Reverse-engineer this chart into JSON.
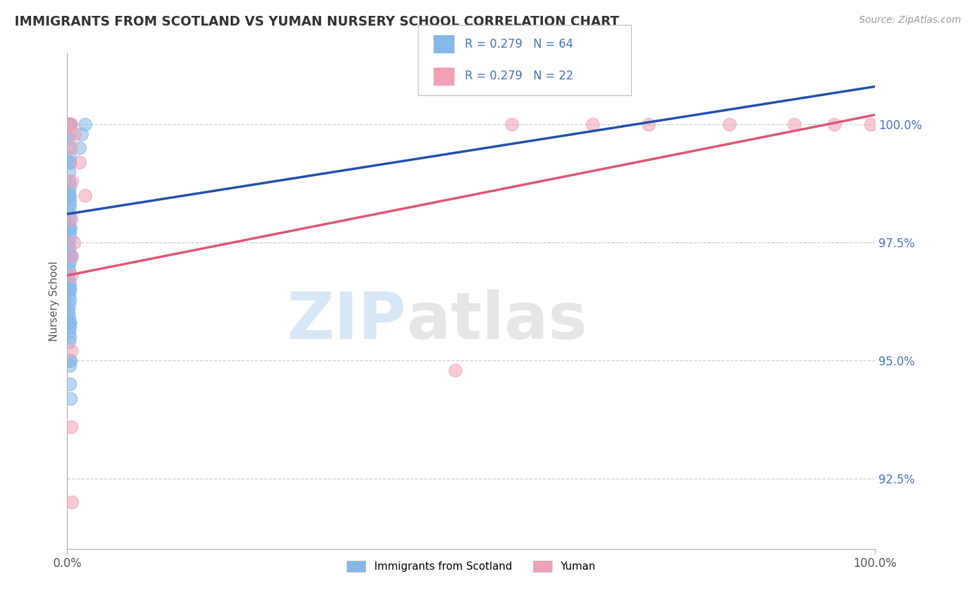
{
  "title": "IMMIGRANTS FROM SCOTLAND VS YUMAN NURSERY SCHOOL CORRELATION CHART",
  "source": "Source: ZipAtlas.com",
  "ylabel": "Nursery School",
  "legend_blue_label": "Immigrants from Scotland",
  "legend_pink_label": "Yuman",
  "legend_blue_r": "R = 0.279",
  "legend_blue_n": "N = 64",
  "legend_pink_r": "R = 0.279",
  "legend_pink_n": "N = 22",
  "xlim": [
    0.0,
    100.0
  ],
  "ylim": [
    91.0,
    101.5
  ],
  "yticks": [
    92.5,
    95.0,
    97.5,
    100.0
  ],
  "ytick_labels": [
    "92.5%",
    "95.0%",
    "97.5%",
    "100.0%"
  ],
  "xticks": [
    0.0,
    100.0
  ],
  "xtick_labels": [
    "0.0%",
    "100.0%"
  ],
  "blue_color": "#85B8E8",
  "pink_color": "#F2A0B5",
  "blue_line_color": "#2050B0",
  "pink_line_color": "#E05575",
  "watermark_zip": "ZIP",
  "watermark_atlas": "atlas",
  "blue_scatter_x": [
    0.15,
    0.2,
    0.25,
    0.3,
    0.35,
    0.18,
    0.22,
    0.28,
    0.32,
    0.15,
    0.18,
    0.25,
    0.3,
    0.35,
    0.2,
    0.25,
    0.28,
    0.22,
    0.18,
    0.3,
    0.35,
    0.2,
    0.25,
    0.28,
    0.15,
    0.22,
    0.3,
    0.35,
    0.18,
    0.25,
    0.2,
    0.28,
    0.32,
    0.15,
    0.22,
    0.18,
    0.25,
    0.3,
    0.35,
    0.2,
    0.28,
    0.22,
    0.18,
    0.15,
    0.25,
    0.3,
    0.35,
    0.2,
    0.28,
    0.22,
    0.35,
    0.3,
    1.5,
    1.8,
    2.2,
    0.3,
    0.3,
    0.4,
    0.5,
    0.3,
    0.3,
    0.4,
    0.3,
    0.4
  ],
  "blue_scatter_y": [
    100.0,
    100.0,
    100.0,
    100.0,
    100.0,
    100.0,
    100.0,
    100.0,
    100.0,
    99.8,
    99.7,
    99.5,
    99.3,
    99.2,
    99.0,
    98.8,
    98.7,
    98.6,
    98.5,
    98.4,
    98.3,
    98.2,
    98.1,
    98.0,
    97.9,
    97.8,
    97.7,
    97.6,
    97.5,
    97.4,
    97.3,
    97.2,
    97.1,
    97.0,
    96.9,
    96.8,
    96.7,
    96.6,
    96.5,
    96.4,
    96.3,
    96.2,
    96.1,
    96.0,
    95.9,
    95.8,
    95.7,
    95.6,
    95.5,
    95.4,
    95.0,
    94.9,
    99.5,
    99.8,
    100.0,
    99.2,
    98.5,
    97.8,
    97.2,
    96.5,
    95.8,
    95.0,
    94.5,
    94.2
  ],
  "pink_scatter_x": [
    0.5,
    0.9,
    1.5,
    2.2,
    0.5,
    0.8,
    0.6,
    0.5,
    0.5,
    0.6,
    55.0,
    65.0,
    72.0,
    82.0,
    90.0,
    95.0,
    99.5,
    0.4,
    48.0,
    0.5,
    0.5,
    0.6
  ],
  "pink_scatter_y": [
    100.0,
    99.8,
    99.2,
    98.5,
    98.0,
    97.5,
    97.2,
    96.8,
    99.5,
    98.8,
    100.0,
    100.0,
    100.0,
    100.0,
    100.0,
    100.0,
    100.0,
    100.0,
    94.8,
    95.2,
    93.6,
    92.0
  ],
  "blue_trend_start_y": 98.1,
  "blue_trend_end_y": 100.8,
  "pink_trend_start_y": 96.8,
  "pink_trend_end_y": 100.2
}
